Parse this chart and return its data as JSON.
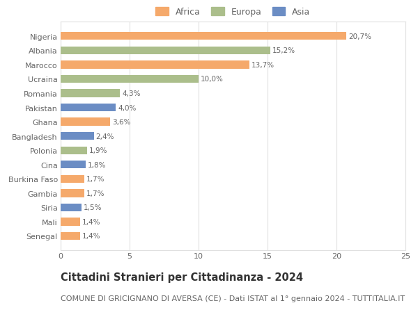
{
  "countries": [
    "Nigeria",
    "Albania",
    "Marocco",
    "Ucraina",
    "Romania",
    "Pakistan",
    "Ghana",
    "Bangladesh",
    "Polonia",
    "Cina",
    "Burkina Faso",
    "Gambia",
    "Siria",
    "Mali",
    "Senegal"
  ],
  "values": [
    20.7,
    15.2,
    13.7,
    10.0,
    4.3,
    4.0,
    3.6,
    2.4,
    1.9,
    1.8,
    1.7,
    1.7,
    1.5,
    1.4,
    1.4
  ],
  "labels": [
    "20,7%",
    "15,2%",
    "13,7%",
    "10,0%",
    "4,3%",
    "4,0%",
    "3,6%",
    "2,4%",
    "1,9%",
    "1,8%",
    "1,7%",
    "1,7%",
    "1,5%",
    "1,4%",
    "1,4%"
  ],
  "continents": [
    "Africa",
    "Europa",
    "Africa",
    "Europa",
    "Europa",
    "Asia",
    "Africa",
    "Asia",
    "Europa",
    "Asia",
    "Africa",
    "Africa",
    "Asia",
    "Africa",
    "Africa"
  ],
  "colors": {
    "Africa": "#F5A96B",
    "Europa": "#ABBE8B",
    "Asia": "#6B8DC4"
  },
  "xlim": [
    0,
    25
  ],
  "xticks": [
    0,
    5,
    10,
    15,
    20,
    25
  ],
  "title": "Cittadini Stranieri per Cittadinanza - 2024",
  "subtitle": "COMUNE DI GRICIGNANO DI AVERSA (CE) - Dati ISTAT al 1° gennaio 2024 - TUTTITALIA.IT",
  "background_color": "#ffffff",
  "grid_color": "#e0e0e0",
  "bar_height": 0.55,
  "title_fontsize": 10.5,
  "subtitle_fontsize": 8,
  "label_fontsize": 7.5,
  "tick_fontsize": 8,
  "legend_fontsize": 9
}
